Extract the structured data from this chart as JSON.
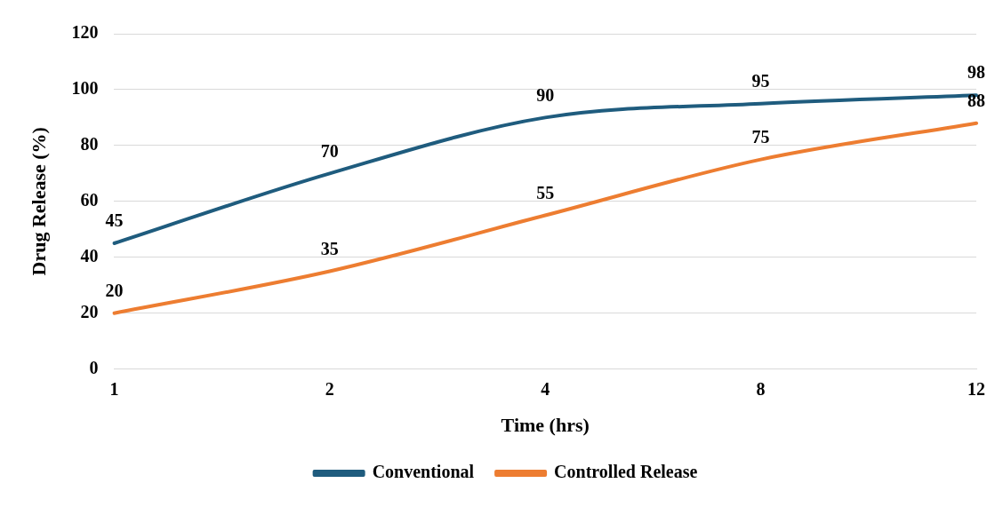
{
  "chart_data": {
    "type": "line",
    "xlabel": "Time (hrs)",
    "ylabel": "Drug Release (%)",
    "categories": [
      "1",
      "2",
      "4",
      "8",
      "12"
    ],
    "series": [
      {
        "name": "Conventional",
        "color": "#1f5c7e",
        "values": [
          45,
          70,
          90,
          95,
          98
        ]
      },
      {
        "name": "Controlled Release",
        "color": "#ed7d31",
        "values": [
          20,
          35,
          55,
          75,
          88
        ]
      }
    ],
    "ylim": [
      0,
      120
    ],
    "yticks": [
      0,
      20,
      40,
      60,
      80,
      100,
      120
    ],
    "grid": "y",
    "legend": "bottom",
    "data_labels": true,
    "marker": "none",
    "line_style": "solid"
  }
}
